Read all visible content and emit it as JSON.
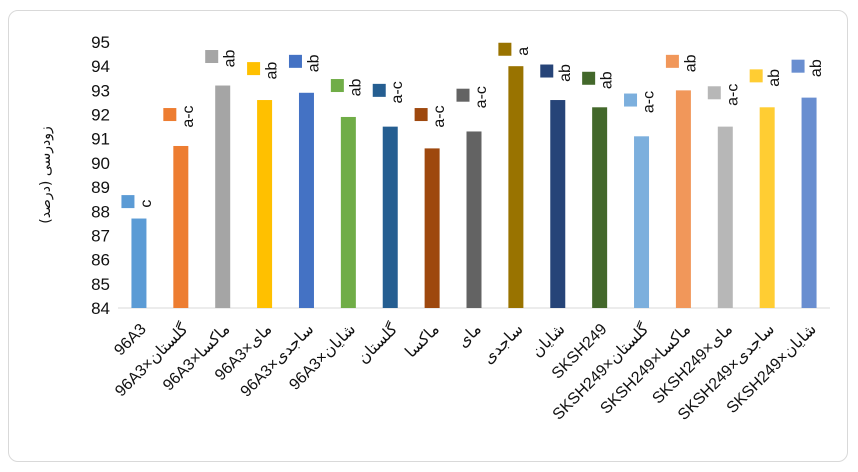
{
  "chart_data": {
    "type": "bar",
    "ylabel": "زودرسی (درصد)",
    "ylim": [
      84,
      95
    ],
    "yticks": [
      "84",
      "85",
      "86",
      "87",
      "88",
      "89",
      "90",
      "91",
      "92",
      "93",
      "94",
      "95"
    ],
    "grid": false,
    "legend": "none",
    "categories": [
      "96A3",
      "96A3×گلستان",
      "96A3×ماکسا",
      "96A3×مای",
      "96A3×ساجدی",
      "96A3×شایان",
      "گلستان",
      "ماکسا",
      "مای",
      "ساجدی",
      "شایان",
      "SKSH249",
      "SKSH249×گلستان",
      "SKSH249×ماکسا",
      "SKSH249×مای",
      "SKSH249×ساجدی",
      "SKSH249×شایان"
    ],
    "values": [
      87.7,
      90.7,
      93.2,
      92.6,
      92.9,
      91.9,
      91.5,
      90.6,
      91.3,
      94.0,
      92.6,
      92.3,
      91.1,
      93.0,
      91.5,
      92.3,
      92.7
    ],
    "markers": [
      88.4,
      92.0,
      94.4,
      93.9,
      94.2,
      93.2,
      93.0,
      92.0,
      92.8,
      94.7,
      93.8,
      93.5,
      92.6,
      94.2,
      92.9,
      93.6,
      94.0
    ],
    "significance": [
      "c",
      "a-c",
      "ab",
      "ab",
      "ab",
      "ab",
      "a-c",
      "a-c",
      "a-c",
      "a",
      "ab",
      "ab",
      "a-c",
      "ab",
      "a-c",
      "ab",
      "ab"
    ],
    "colors": [
      "#5b9bd5",
      "#ed7d31",
      "#a5a5a5",
      "#ffc000",
      "#4472c4",
      "#70ad47",
      "#255e91",
      "#9e480e",
      "#636363",
      "#997300",
      "#264478",
      "#43682b",
      "#7cafdd",
      "#f1975a",
      "#b7b7b7",
      "#ffcd33",
      "#698ed0"
    ]
  }
}
